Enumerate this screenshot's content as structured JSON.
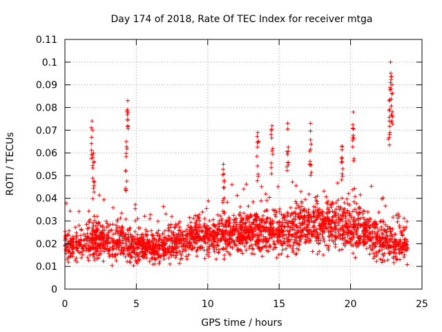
{
  "chart_data": {
    "type": "scatter",
    "title": "Day 174 of 2018, Rate Of TEC Index for receiver mtga",
    "xlabel": "GPS time / hours",
    "ylabel": "ROTI / TECUs",
    "xlim": [
      0,
      25
    ],
    "ylim": [
      0,
      0.11
    ],
    "xticks": [
      0,
      5,
      10,
      15,
      20,
      25
    ],
    "xtick_labels": [
      "0",
      "5",
      "10",
      "15",
      "20",
      "25"
    ],
    "yticks": [
      0,
      0.01,
      0.02,
      0.03,
      0.04,
      0.05,
      0.06,
      0.07,
      0.08,
      0.09,
      0.1,
      0.11
    ],
    "ytick_labels": [
      "0",
      "0.01",
      "0.02",
      "0.03",
      "0.04",
      "0.05",
      "0.06",
      "0.07",
      "0.08",
      "0.09",
      "0.1",
      "0.11"
    ],
    "grid": true,
    "marker": "+",
    "marker_color": "#ff0000",
    "series": [
      {
        "name": "ROTI",
        "profile_hours": [
          0,
          1,
          2,
          3,
          4,
          5,
          6,
          7,
          8,
          9,
          10,
          11,
          12,
          13,
          14,
          15,
          16,
          17,
          18,
          19,
          20,
          21,
          22,
          23,
          24
        ],
        "typical_roti": [
          0.018,
          0.02,
          0.022,
          0.021,
          0.022,
          0.019,
          0.018,
          0.019,
          0.021,
          0.023,
          0.022,
          0.024,
          0.024,
          0.025,
          0.026,
          0.025,
          0.027,
          0.028,
          0.029,
          0.028,
          0.027,
          0.025,
          0.022,
          0.02,
          0.019
        ],
        "spikes": [
          {
            "x": 1.9,
            "y": 0.074
          },
          {
            "x": 2.0,
            "y": 0.06
          },
          {
            "x": 4.4,
            "y": 0.083
          },
          {
            "x": 4.3,
            "y": 0.065
          },
          {
            "x": 11.1,
            "y": 0.055
          },
          {
            "x": 13.5,
            "y": 0.069
          },
          {
            "x": 14.5,
            "y": 0.072
          },
          {
            "x": 15.6,
            "y": 0.073
          },
          {
            "x": 17.2,
            "y": 0.073
          },
          {
            "x": 19.4,
            "y": 0.063
          },
          {
            "x": 20.2,
            "y": 0.078
          },
          {
            "x": 22.8,
            "y": 0.1
          },
          {
            "x": 22.9,
            "y": 0.09
          },
          {
            "x": 22.7,
            "y": 0.083
          }
        ]
      }
    ]
  }
}
